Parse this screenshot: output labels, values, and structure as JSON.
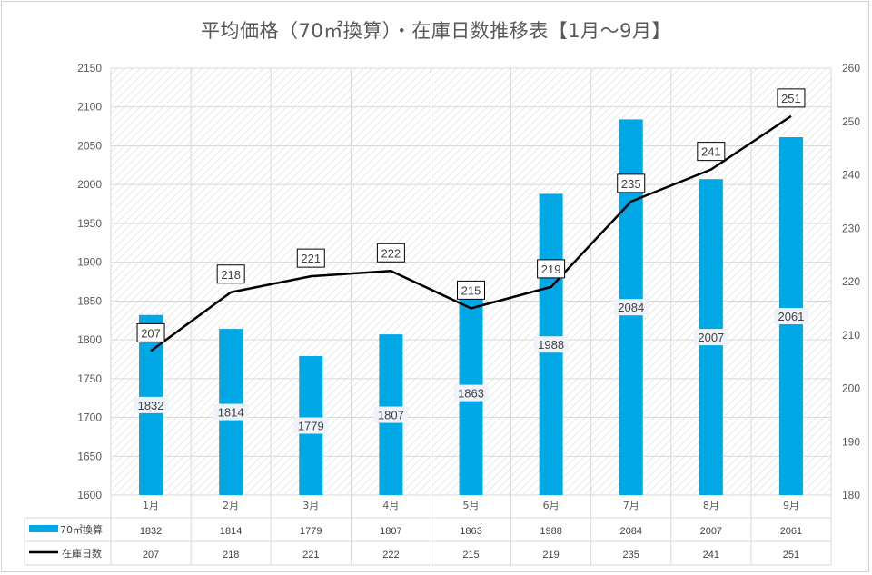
{
  "chart_data": {
    "type": "bar",
    "title": "平均価格（70㎡換算）・在庫日数推移表【1月～9月】",
    "categories": [
      "1月",
      "2月",
      "3月",
      "4月",
      "5月",
      "6月",
      "7月",
      "8月",
      "9月"
    ],
    "series": [
      {
        "name": "70㎡換算",
        "type": "bar",
        "axis": "left",
        "color": "#00a8e6",
        "values": [
          1832,
          1814,
          1779,
          1807,
          1863,
          1988,
          2084,
          2007,
          2061
        ]
      },
      {
        "name": "在庫日数",
        "type": "line",
        "axis": "right",
        "color": "#000000",
        "values": [
          207,
          218,
          221,
          222,
          215,
          219,
          235,
          241,
          251
        ]
      }
    ],
    "y_left": {
      "min": 1600,
      "max": 2150,
      "step": 50,
      "ticks": [
        "1600",
        "1650",
        "1700",
        "1750",
        "1800",
        "1850",
        "1900",
        "1950",
        "2000",
        "2050",
        "2100",
        "2150"
      ]
    },
    "y_right": {
      "min": 180,
      "max": 260,
      "step": 10,
      "ticks": [
        "180",
        "190",
        "200",
        "210",
        "220",
        "230",
        "240",
        "250",
        "260"
      ]
    },
    "grid": true,
    "data_table": true
  }
}
